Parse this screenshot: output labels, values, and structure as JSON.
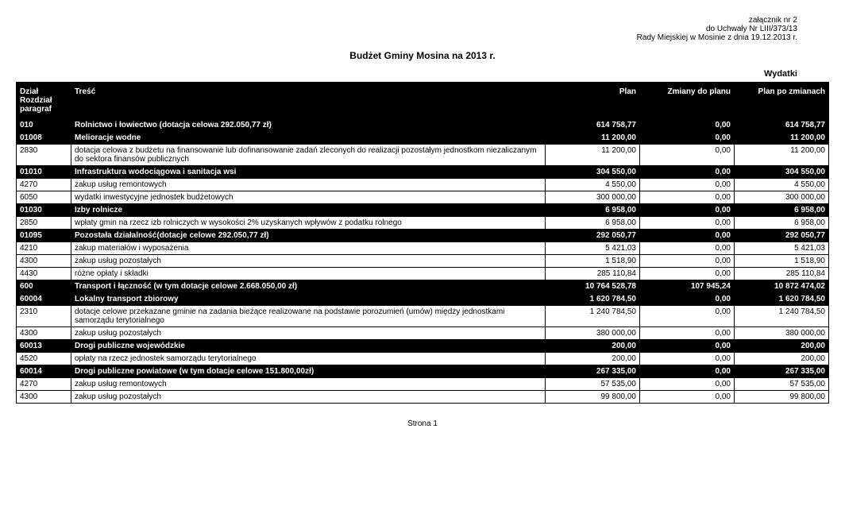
{
  "header": {
    "line1": "załącznik nr 2",
    "line2": "do Uchwały Nr LIII/373/13",
    "line3": "Rady Miejskiej w Mosinie z dnia 19.12.2013 r."
  },
  "title": "Budżet Gminy Mosina na 2013 r.",
  "subtitle": "Wydatki",
  "columns": [
    "Dział\nRozdział\nparagraf",
    "Treść",
    "Plan",
    "Zmiany do planu",
    "Plan po zmianach"
  ],
  "rows": [
    {
      "bold": true,
      "code": "010",
      "desc": "Rolnictwo i łowiectwo (dotacja celowa 292.050,77 zł)",
      "plan": "614 758,77",
      "zm": "0,00",
      "po": "614 758,77"
    },
    {
      "bold": true,
      "code": "01008",
      "desc": "Melioracje wodne",
      "plan": "11 200,00",
      "zm": "0,00",
      "po": "11 200,00"
    },
    {
      "bold": false,
      "code": "2830",
      "desc": "dotacja celowa z budżetu na finansowanie lub dofinansowanie zadań zleconych do realizacji pozostałym jednostkom niezaliczanym do sektora finansów publicznych",
      "plan": "11 200,00",
      "zm": "0,00",
      "po": "11 200,00"
    },
    {
      "bold": true,
      "code": "01010",
      "desc": "Infrastruktura wodociągowa i sanitacja wsi",
      "plan": "304 550,00",
      "zm": "0,00",
      "po": "304 550,00"
    },
    {
      "bold": false,
      "code": "4270",
      "desc": "zakup usług remontowych",
      "plan": "4 550,00",
      "zm": "0,00",
      "po": "4 550,00"
    },
    {
      "bold": false,
      "code": "6050",
      "desc": "wydatki inwestycyjne jednostek budżetowych",
      "plan": "300 000,00",
      "zm": "0,00",
      "po": "300 000,00"
    },
    {
      "bold": true,
      "code": "01030",
      "desc": "Izby rolnicze",
      "plan": "6 958,00",
      "zm": "0,00",
      "po": "6 958,00"
    },
    {
      "bold": false,
      "code": "2850",
      "desc": "wpłaty gmin na rzecz izb rolniczych w wysokości 2% uzyskanych wpływów z podatku rolnego",
      "plan": "6 958,00",
      "zm": "0,00",
      "po": "6 958,00"
    },
    {
      "bold": true,
      "code": "01095",
      "desc": "Pozostała działalność(dotacje celowe 292.050,77 zł)",
      "plan": "292 050,77",
      "zm": "0,00",
      "po": "292 050,77"
    },
    {
      "bold": false,
      "code": "4210",
      "desc": "zakup materiałów i wyposażenia",
      "plan": "5 421,03",
      "zm": "0,00",
      "po": "5 421,03"
    },
    {
      "bold": false,
      "code": "4300",
      "desc": "zakup usług pozostałych",
      "plan": "1 518,90",
      "zm": "0,00",
      "po": "1 518,90"
    },
    {
      "bold": false,
      "code": "4430",
      "desc": "różne opłaty i składki",
      "plan": "285 110,84",
      "zm": "0,00",
      "po": "285 110,84"
    },
    {
      "bold": true,
      "code": "600",
      "desc": "Transport i łączność (w tym dotacje celowe 2.668.050,00 zł)",
      "plan": "10 764 528,78",
      "zm": "107 945,24",
      "po": "10 872 474,02"
    },
    {
      "bold": true,
      "code": "60004",
      "desc": "Lokalny transport zbiorowy",
      "plan": "1 620 784,50",
      "zm": "0,00",
      "po": "1 620 784,50"
    },
    {
      "bold": false,
      "code": "2310",
      "desc": "dotacje celowe przekazane gminie na zadania bieżące realizowane na podstawie porozumień (umów) między jednostkami samorządu terytorialnego",
      "plan": "1 240 784,50",
      "zm": "0,00",
      "po": "1 240 784,50"
    },
    {
      "bold": false,
      "code": "4300",
      "desc": "zakup usług pozostałych",
      "plan": "380 000,00",
      "zm": "0,00",
      "po": "380 000,00"
    },
    {
      "bold": true,
      "code": "60013",
      "desc": "Drogi publiczne wojewódzkie",
      "plan": "200,00",
      "zm": "0,00",
      "po": "200,00"
    },
    {
      "bold": false,
      "code": "4520",
      "desc": "opłaty na rzecz jednostek samorządu terytorialnego",
      "plan": "200,00",
      "zm": "0,00",
      "po": "200,00"
    },
    {
      "bold": true,
      "code": "60014",
      "desc": "Drogi publiczne powiatowe (w tym dotacje celowe 151.800,00zł)",
      "plan": "267 335,00",
      "zm": "0,00",
      "po": "267 335,00"
    },
    {
      "bold": false,
      "code": "4270",
      "desc": "zakup usług remontowych",
      "plan": "57 535,00",
      "zm": "0,00",
      "po": "57 535,00"
    },
    {
      "bold": false,
      "code": "4300",
      "desc": "zakup usług pozostałych",
      "plan": "99 800,00",
      "zm": "0,00",
      "po": "99 800,00"
    }
  ],
  "footer": "Strona 1"
}
